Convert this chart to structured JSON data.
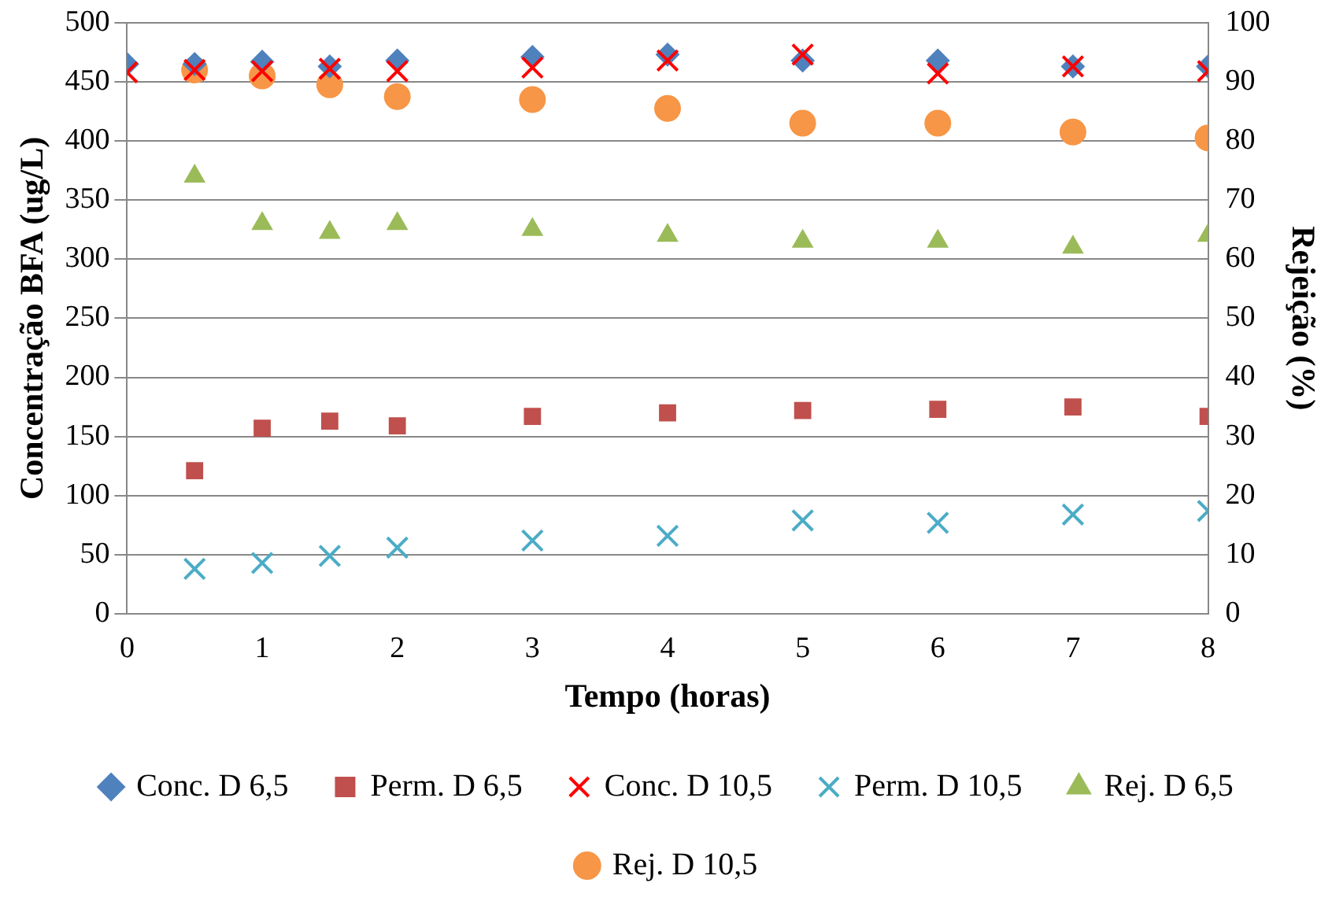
{
  "chart_data": {
    "type": "scatter",
    "xlabel": "Tempo (horas)",
    "ylabel": "Concentração BFA (ug/L)",
    "y2label": "Rejeição (%)",
    "xlim": [
      0,
      8
    ],
    "xticks": [
      0,
      1,
      2,
      3,
      4,
      5,
      6,
      7,
      8
    ],
    "ylim": [
      0,
      500
    ],
    "yticks": [
      0,
      50,
      100,
      150,
      200,
      250,
      300,
      350,
      400,
      450,
      500
    ],
    "y2lim": [
      0,
      100
    ],
    "y2ticks": [
      0,
      10,
      20,
      30,
      40,
      50,
      60,
      70,
      80,
      90,
      100
    ],
    "grid": "y",
    "legend": "bottom",
    "x": [
      0,
      0.5,
      1,
      1.5,
      2,
      3,
      4,
      5,
      6,
      7,
      8
    ],
    "series": [
      {
        "name": "Conc. D 6,5",
        "color": "#4f81bd",
        "marker": "diamond",
        "values": [
          465,
          465,
          467,
          463,
          468,
          471,
          473,
          468,
          468,
          463,
          463
        ]
      },
      {
        "name": "Perm. D 6,5",
        "color": "#c0504d",
        "marker": "square",
        "values": [
          null,
          121,
          157,
          163,
          159,
          167,
          170,
          172,
          173,
          175,
          167
        ]
      },
      {
        "name": "Conc. D 10,5",
        "color": "#ff0000",
        "marker": "cross",
        "values": [
          458,
          460,
          459,
          461,
          459,
          462,
          468,
          473,
          457,
          463,
          459
        ]
      },
      {
        "name": "Perm. D 10,5",
        "color": "#4bacc6",
        "marker": "cross",
        "values": [
          null,
          38,
          43,
          49,
          56,
          62,
          66,
          79,
          77,
          84,
          87
        ]
      },
      {
        "name": "Rej. D 6,5",
        "color": "#9bbb59",
        "marker": "triangle",
        "axis": "y2",
        "values": [
          null,
          74,
          66,
          64.5,
          66,
          65,
          64,
          63,
          63,
          62,
          64
        ]
      },
      {
        "name": "Rej. D 10,5",
        "color": "#f79646",
        "marker": "circle",
        "axis": "y2",
        "values": [
          null,
          92,
          91,
          89.5,
          87.5,
          87,
          85.5,
          83,
          83,
          81.5,
          80.5
        ]
      }
    ]
  }
}
